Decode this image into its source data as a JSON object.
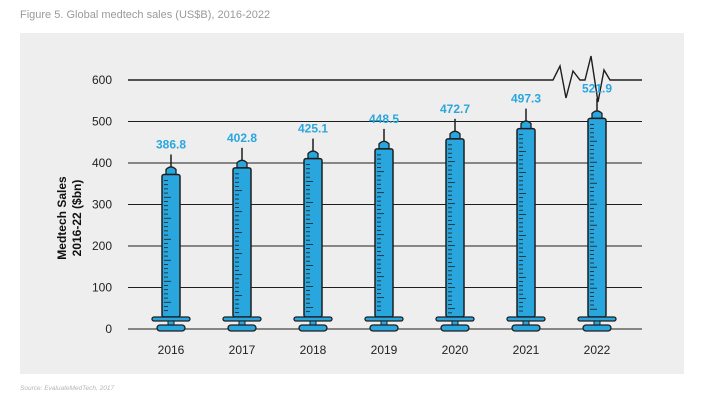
{
  "figure_title": "Figure 5. Global medtech sales (US$B), 2016-2022",
  "source": "Source: EvaluateMedTech, 2017",
  "colors": {
    "syringe": "#2aa6de",
    "outline": "#1e1e1e",
    "panel": "#eeeeee",
    "label": "#2aa6de"
  },
  "chart_data": {
    "type": "bar",
    "categories": [
      "2016",
      "2017",
      "2018",
      "2019",
      "2020",
      "2021",
      "2022"
    ],
    "values": [
      386.8,
      402.8,
      425.1,
      448.5,
      472.7,
      497.3,
      521.9
    ],
    "value_labels": [
      "386.8",
      "402.8",
      "425.1",
      "448.5",
      "472.7",
      "497.3",
      "521.9"
    ],
    "ylabel_line1": "Medtech Sales",
    "ylabel_line2": "2016-22 ($bn)",
    "yticks": [
      0,
      100,
      200,
      300,
      400,
      500,
      600
    ],
    "ylim": [
      0,
      600
    ],
    "grid": true,
    "bar_style": "syringe"
  }
}
